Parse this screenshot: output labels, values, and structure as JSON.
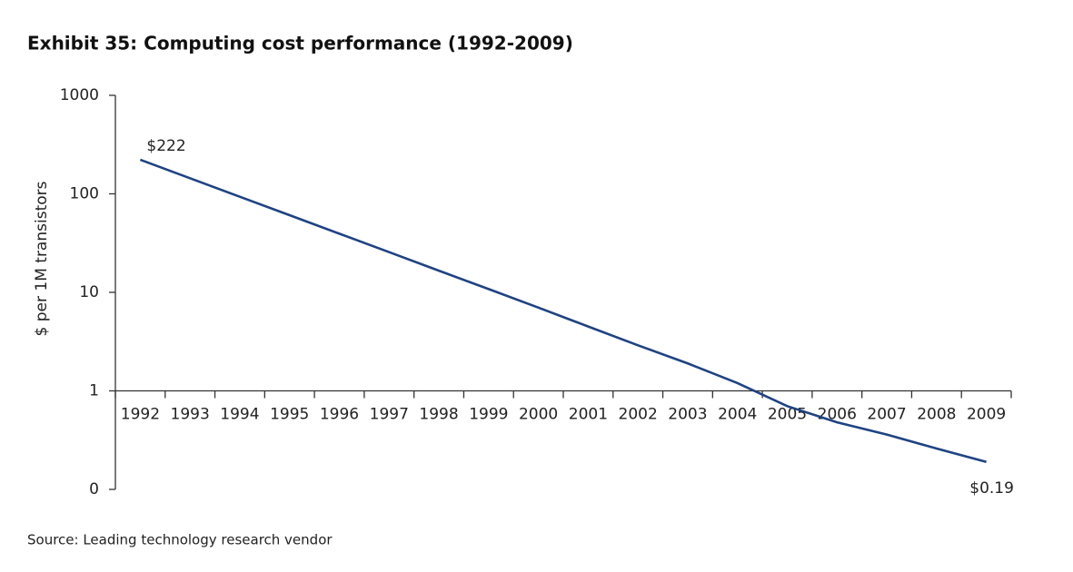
{
  "chart_data": {
    "type": "line",
    "title": "Exhibit 35: Computing cost performance (1992-2009)",
    "y_label": "$ per 1M transistors",
    "source": "Source: Leading technology research vendor",
    "categories": [
      "1992",
      "1993",
      "1994",
      "1995",
      "1996",
      "1997",
      "1998",
      "1999",
      "2000",
      "2001",
      "2002",
      "2003",
      "2004",
      "2005",
      "2006",
      "2007",
      "2008",
      "2009"
    ],
    "values": [
      222,
      144,
      93.5,
      60.7,
      39.4,
      25.6,
      16.6,
      10.8,
      7.0,
      4.5,
      2.9,
      1.9,
      1.2,
      0.7,
      0.48,
      0.36,
      0.26,
      0.19
    ],
    "value_labels": [
      "$222",
      null,
      null,
      null,
      null,
      null,
      null,
      null,
      null,
      null,
      null,
      null,
      null,
      null,
      null,
      null,
      null,
      "$0.19"
    ],
    "color": "#1f4382",
    "log_scale": true,
    "ylim": [
      0.1,
      1000
    ],
    "yticks": [
      {
        "value": 0.1,
        "label": "0"
      },
      1,
      10,
      100,
      1000
    ],
    "grid": false
  }
}
